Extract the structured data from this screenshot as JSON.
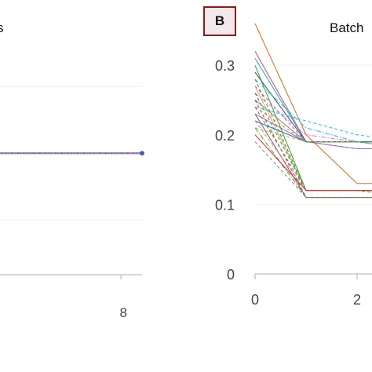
{
  "panel_b": {
    "label": "B",
    "title_fragment": "Batch"
  },
  "panel_a": {
    "title_fragment": "s"
  },
  "colors": {
    "axis": "#c8c8c8",
    "tick_text": "#444444",
    "grid": "#f0f0f0",
    "panel_label_border": "#8b1a1a"
  },
  "chart_data": [
    {
      "panel": "A",
      "type": "line",
      "title": "",
      "xlabel": "",
      "ylabel": "",
      "x_ticks": [
        8
      ],
      "y_ticks": [],
      "grid": true,
      "series": [
        {
          "x": [
            0,
            1,
            2,
            3,
            4,
            5,
            6,
            7,
            8,
            9
          ],
          "y": [
            0.2,
            0.2,
            0.2,
            0.2,
            0.2,
            0.2,
            0.2,
            0.2,
            0.2,
            0.2
          ],
          "color": "#4a5fa0",
          "dash": "solid"
        },
        {
          "x": [
            0,
            1,
            2,
            3,
            4,
            5,
            6,
            7,
            8,
            9
          ],
          "y": [
            0.2,
            0.2,
            0.2,
            0.2,
            0.2,
            0.2,
            0.2,
            0.2,
            0.2,
            0.2
          ],
          "color": "#d06a6a",
          "dash": "dashed"
        },
        {
          "x": [
            0,
            1,
            2,
            3,
            4,
            5,
            6,
            7,
            8,
            9
          ],
          "y": [
            0.2,
            0.2,
            0.2,
            0.2,
            0.2,
            0.2,
            0.2,
            0.2,
            0.2,
            0.2
          ],
          "color": "#6fa8dc",
          "dash": "dotted"
        }
      ]
    },
    {
      "panel": "B",
      "type": "line",
      "title": "Batch",
      "xlabel": "",
      "ylabel": "",
      "x_ticks": [
        0,
        2
      ],
      "y_ticks": [
        0,
        0.1,
        0.2,
        0.3
      ],
      "ylim": [
        0,
        0.36
      ],
      "grid": true,
      "series": [
        {
          "x": [
            0,
            1,
            2,
            3
          ],
          "y": [
            0.36,
            0.2,
            0.13,
            0.13
          ],
          "color": "#d2691e",
          "dash": "solid"
        },
        {
          "x": [
            0,
            1,
            2,
            3
          ],
          "y": [
            0.32,
            0.19,
            0.19,
            0.19
          ],
          "color": "#c0504d",
          "dash": "solid"
        },
        {
          "x": [
            0,
            1,
            2,
            3
          ],
          "y": [
            0.31,
            0.19,
            0.19,
            0.18
          ],
          "color": "#1f9bd7",
          "dash": "solid"
        },
        {
          "x": [
            0,
            1,
            2,
            3
          ],
          "y": [
            0.3,
            0.12,
            0.12,
            0.12
          ],
          "color": "#2ca02c",
          "dash": "solid"
        },
        {
          "x": [
            0,
            1,
            2,
            3
          ],
          "y": [
            0.29,
            0.19,
            0.19,
            0.19
          ],
          "color": "#444444",
          "dash": "solid"
        },
        {
          "x": [
            0,
            1,
            2,
            3
          ],
          "y": [
            0.28,
            0.12,
            0.12,
            0.12
          ],
          "color": "#8c564b",
          "dash": "dashed"
        },
        {
          "x": [
            0,
            1,
            2,
            3
          ],
          "y": [
            0.28,
            0.21,
            0.19,
            0.18
          ],
          "color": "#17becf",
          "dash": "dashdot"
        },
        {
          "x": [
            0,
            1,
            2,
            3
          ],
          "y": [
            0.27,
            0.19,
            0.18,
            0.18
          ],
          "color": "#9467bd",
          "dash": "dashed"
        },
        {
          "x": [
            0,
            1,
            2,
            3
          ],
          "y": [
            0.27,
            0.12,
            0.12,
            0.12
          ],
          "color": "#bcbd22",
          "dash": "solid"
        },
        {
          "x": [
            0,
            1,
            2,
            3
          ],
          "y": [
            0.26,
            0.2,
            0.19,
            0.19
          ],
          "color": "#e377c2",
          "dash": "dashdot"
        },
        {
          "x": [
            0,
            1,
            2,
            3
          ],
          "y": [
            0.26,
            0.12,
            0.12,
            0.12
          ],
          "color": "#1f77b4",
          "dash": "dashed"
        },
        {
          "x": [
            0,
            1,
            2,
            3
          ],
          "y": [
            0.25,
            0.19,
            0.19,
            0.19
          ],
          "color": "#7f7f7f",
          "dash": "solid"
        },
        {
          "x": [
            0,
            1,
            2,
            3
          ],
          "y": [
            0.25,
            0.11,
            0.11,
            0.11
          ],
          "color": "#d62728",
          "dash": "dashed"
        },
        {
          "x": [
            0,
            1,
            2,
            3
          ],
          "y": [
            0.24,
            0.19,
            0.19,
            0.19
          ],
          "color": "#ff7f0e",
          "dash": "dashed"
        },
        {
          "x": [
            0,
            1,
            2,
            3
          ],
          "y": [
            0.24,
            0.12,
            0.12,
            0.11
          ],
          "color": "#2ca02c",
          "dash": "dashed"
        },
        {
          "x": [
            0,
            1,
            2,
            3
          ],
          "y": [
            0.24,
            0.22,
            0.2,
            0.19
          ],
          "color": "#17becf",
          "dash": "dashed"
        },
        {
          "x": [
            0,
            1,
            2,
            3
          ],
          "y": [
            0.23,
            0.19,
            0.18,
            0.18
          ],
          "color": "#9467bd",
          "dash": "solid"
        },
        {
          "x": [
            0,
            1,
            2,
            3
          ],
          "y": [
            0.23,
            0.11,
            0.11,
            0.11
          ],
          "color": "#8c564b",
          "dash": "solid"
        },
        {
          "x": [
            0,
            1,
            2,
            3
          ],
          "y": [
            0.22,
            0.19,
            0.19,
            0.19
          ],
          "color": "#1f77b4",
          "dash": "solid"
        },
        {
          "x": [
            0,
            1,
            2,
            3
          ],
          "y": [
            0.22,
            0.12,
            0.12,
            0.12
          ],
          "color": "#e377c2",
          "dash": "dashed"
        },
        {
          "x": [
            0,
            1,
            2,
            3
          ],
          "y": [
            0.21,
            0.11,
            0.11,
            0.11
          ],
          "color": "#2ca02c",
          "dash": "dashdot"
        },
        {
          "x": [
            0,
            1,
            2,
            3
          ],
          "y": [
            0.21,
            0.19,
            0.19,
            0.18
          ],
          "color": "#bcbd22",
          "dash": "dashed"
        },
        {
          "x": [
            0,
            1,
            2,
            3
          ],
          "y": [
            0.2,
            0.12,
            0.12,
            0.12
          ],
          "color": "#d62728",
          "dash": "solid"
        },
        {
          "x": [
            0,
            1,
            2,
            3
          ],
          "y": [
            0.19,
            0.11,
            0.11,
            0.11
          ],
          "color": "#7f7f7f",
          "dash": "dashed"
        }
      ]
    }
  ]
}
